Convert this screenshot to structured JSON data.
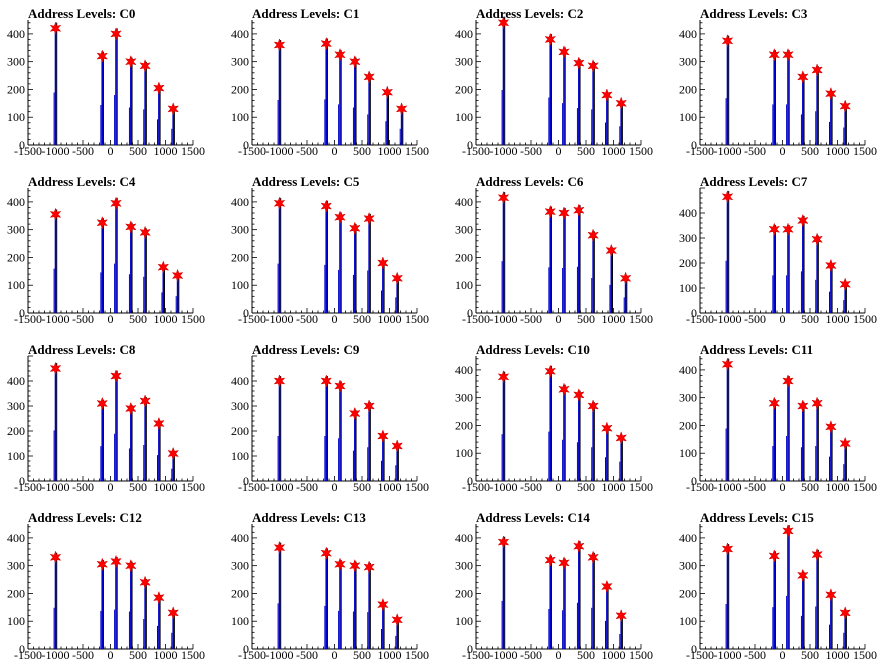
{
  "chart_data": [
    {
      "type": "line",
      "title": "Address Levels: C0",
      "xlim": [
        -1500,
        1500
      ],
      "ylim": [
        0,
        450
      ],
      "xticks": [
        "-1500",
        "-1000",
        "-500",
        "0",
        "500",
        "1000",
        "1500"
      ],
      "yticks": [
        "0",
        "100",
        "200",
        "300",
        "400"
      ],
      "peaks": [
        {
          "x": -1000,
          "y": 420
        },
        {
          "x": -150,
          "y": 320
        },
        {
          "x": 100,
          "y": 400
        },
        {
          "x": 370,
          "y": 300
        },
        {
          "x": 630,
          "y": 285
        },
        {
          "x": 880,
          "y": 205
        },
        {
          "x": 1140,
          "y": 130
        }
      ]
    },
    {
      "type": "line",
      "title": "Address Levels: C1",
      "xlim": [
        -1500,
        1500
      ],
      "ylim": [
        0,
        450
      ],
      "xticks": [
        "-1500",
        "-1000",
        "-500",
        "0",
        "500",
        "1000",
        "1500"
      ],
      "yticks": [
        "0",
        "100",
        "200",
        "300",
        "400"
      ],
      "peaks": [
        {
          "x": -1000,
          "y": 360
        },
        {
          "x": -150,
          "y": 365
        },
        {
          "x": 100,
          "y": 325
        },
        {
          "x": 370,
          "y": 300
        },
        {
          "x": 630,
          "y": 245
        },
        {
          "x": 960,
          "y": 190
        },
        {
          "x": 1220,
          "y": 130
        }
      ]
    },
    {
      "type": "line",
      "title": "Address Levels: C2",
      "xlim": [
        -1500,
        1500
      ],
      "ylim": [
        0,
        450
      ],
      "xticks": [
        "-1500",
        "-1000",
        "-500",
        "0",
        "500",
        "1000",
        "1500"
      ],
      "yticks": [
        "0",
        "100",
        "200",
        "300",
        "400"
      ],
      "peaks": [
        {
          "x": -1000,
          "y": 440
        },
        {
          "x": -150,
          "y": 380
        },
        {
          "x": 100,
          "y": 335
        },
        {
          "x": 370,
          "y": 295
        },
        {
          "x": 630,
          "y": 285
        },
        {
          "x": 880,
          "y": 180
        },
        {
          "x": 1140,
          "y": 150
        }
      ]
    },
    {
      "type": "line",
      "title": "Address Levels: C3",
      "xlim": [
        -1500,
        1500
      ],
      "ylim": [
        0,
        450
      ],
      "xticks": [
        "-1500",
        "-1000",
        "-500",
        "0",
        "500",
        "1000",
        "1500"
      ],
      "yticks": [
        "0",
        "100",
        "200",
        "300",
        "400"
      ],
      "peaks": [
        {
          "x": -1000,
          "y": 375
        },
        {
          "x": -150,
          "y": 325
        },
        {
          "x": 100,
          "y": 325
        },
        {
          "x": 370,
          "y": 245
        },
        {
          "x": 630,
          "y": 270
        },
        {
          "x": 880,
          "y": 185
        },
        {
          "x": 1140,
          "y": 140
        }
      ]
    },
    {
      "type": "line",
      "title": "Address Levels: C4",
      "xlim": [
        -1500,
        1500
      ],
      "ylim": [
        0,
        450
      ],
      "xticks": [
        "-1500",
        "-1000",
        "-500",
        "0",
        "500",
        "1000",
        "1500"
      ],
      "yticks": [
        "0",
        "100",
        "200",
        "300",
        "400"
      ],
      "peaks": [
        {
          "x": -1000,
          "y": 355
        },
        {
          "x": -150,
          "y": 325
        },
        {
          "x": 100,
          "y": 395
        },
        {
          "x": 370,
          "y": 310
        },
        {
          "x": 630,
          "y": 290
        },
        {
          "x": 960,
          "y": 165
        },
        {
          "x": 1220,
          "y": 135
        }
      ]
    },
    {
      "type": "line",
      "title": "Address Levels: C5",
      "xlim": [
        -1500,
        1500
      ],
      "ylim": [
        0,
        450
      ],
      "xticks": [
        "-1500",
        "-1000",
        "-500",
        "0",
        "500",
        "1000",
        "1500"
      ],
      "yticks": [
        "0",
        "100",
        "200",
        "300",
        "400"
      ],
      "peaks": [
        {
          "x": -1000,
          "y": 395
        },
        {
          "x": -150,
          "y": 385
        },
        {
          "x": 100,
          "y": 345
        },
        {
          "x": 370,
          "y": 305
        },
        {
          "x": 630,
          "y": 340
        },
        {
          "x": 880,
          "y": 180
        },
        {
          "x": 1140,
          "y": 125
        }
      ]
    },
    {
      "type": "line",
      "title": "Address Levels: C6",
      "xlim": [
        -1500,
        1500
      ],
      "ylim": [
        0,
        450
      ],
      "xticks": [
        "-1500",
        "-1000",
        "-500",
        "0",
        "500",
        "1000",
        "1500"
      ],
      "yticks": [
        "0",
        "100",
        "200",
        "300",
        "400"
      ],
      "peaks": [
        {
          "x": -1000,
          "y": 415
        },
        {
          "x": -150,
          "y": 365
        },
        {
          "x": 100,
          "y": 360
        },
        {
          "x": 370,
          "y": 370
        },
        {
          "x": 630,
          "y": 280
        },
        {
          "x": 960,
          "y": 225
        },
        {
          "x": 1220,
          "y": 125
        }
      ]
    },
    {
      "type": "line",
      "title": "Address Levels: C7",
      "xlim": [
        -1500,
        1500
      ],
      "ylim": [
        0,
        500
      ],
      "xticks": [
        "-1500",
        "-1000",
        "-500",
        "0",
        "500",
        "1000",
        "1500"
      ],
      "yticks": [
        "0",
        "100",
        "200",
        "300",
        "400"
      ],
      "peaks": [
        {
          "x": -1000,
          "y": 465
        },
        {
          "x": -150,
          "y": 335
        },
        {
          "x": 100,
          "y": 335
        },
        {
          "x": 370,
          "y": 370
        },
        {
          "x": 630,
          "y": 295
        },
        {
          "x": 880,
          "y": 190
        },
        {
          "x": 1140,
          "y": 115
        }
      ]
    },
    {
      "type": "line",
      "title": "Address Levels: C8",
      "xlim": [
        -1500,
        1500
      ],
      "ylim": [
        0,
        500
      ],
      "xticks": [
        "-1500",
        "-1000",
        "-500",
        "0",
        "500",
        "1000",
        "1500"
      ],
      "yticks": [
        "0",
        "100",
        "200",
        "300",
        "400"
      ],
      "peaks": [
        {
          "x": -1000,
          "y": 450
        },
        {
          "x": -150,
          "y": 310
        },
        {
          "x": 100,
          "y": 420
        },
        {
          "x": 370,
          "y": 290
        },
        {
          "x": 630,
          "y": 320
        },
        {
          "x": 880,
          "y": 230
        },
        {
          "x": 1140,
          "y": 110
        }
      ]
    },
    {
      "type": "line",
      "title": "Address Levels: C9",
      "xlim": [
        -1500,
        1500
      ],
      "ylim": [
        0,
        500
      ],
      "xticks": [
        "-1500",
        "-1000",
        "-500",
        "0",
        "500",
        "1000",
        "1500"
      ],
      "yticks": [
        "0",
        "100",
        "200",
        "300",
        "400"
      ],
      "peaks": [
        {
          "x": -1000,
          "y": 400
        },
        {
          "x": -150,
          "y": 400
        },
        {
          "x": 100,
          "y": 380
        },
        {
          "x": 370,
          "y": 270
        },
        {
          "x": 630,
          "y": 300
        },
        {
          "x": 880,
          "y": 180
        },
        {
          "x": 1140,
          "y": 140
        }
      ]
    },
    {
      "type": "line",
      "title": "Address Levels: C10",
      "xlim": [
        -1500,
        1500
      ],
      "ylim": [
        0,
        450
      ],
      "xticks": [
        "-1500",
        "-1000",
        "-500",
        "0",
        "500",
        "1000",
        "1500"
      ],
      "yticks": [
        "0",
        "100",
        "200",
        "300",
        "400"
      ],
      "peaks": [
        {
          "x": -1000,
          "y": 375
        },
        {
          "x": -150,
          "y": 395
        },
        {
          "x": 100,
          "y": 330
        },
        {
          "x": 370,
          "y": 310
        },
        {
          "x": 630,
          "y": 270
        },
        {
          "x": 880,
          "y": 190
        },
        {
          "x": 1140,
          "y": 155
        }
      ]
    },
    {
      "type": "line",
      "title": "Address Levels: C11",
      "xlim": [
        -1500,
        1500
      ],
      "ylim": [
        0,
        450
      ],
      "xticks": [
        "-1500",
        "-1000",
        "-500",
        "0",
        "500",
        "1000",
        "1500"
      ],
      "yticks": [
        "0",
        "100",
        "200",
        "300",
        "400"
      ],
      "peaks": [
        {
          "x": -1000,
          "y": 420
        },
        {
          "x": -150,
          "y": 280
        },
        {
          "x": 100,
          "y": 360
        },
        {
          "x": 370,
          "y": 270
        },
        {
          "x": 630,
          "y": 280
        },
        {
          "x": 880,
          "y": 195
        },
        {
          "x": 1140,
          "y": 135
        }
      ]
    },
    {
      "type": "line",
      "title": "Address Levels: C12",
      "xlim": [
        -1500,
        1500
      ],
      "ylim": [
        0,
        450
      ],
      "xticks": [
        "-1500",
        "-1000",
        "-500",
        "0",
        "500",
        "1000",
        "1500"
      ],
      "yticks": [
        "0",
        "100",
        "200",
        "300",
        "400"
      ],
      "peaks": [
        {
          "x": -1000,
          "y": 330
        },
        {
          "x": -150,
          "y": 305
        },
        {
          "x": 100,
          "y": 315
        },
        {
          "x": 370,
          "y": 300
        },
        {
          "x": 630,
          "y": 240
        },
        {
          "x": 880,
          "y": 185
        },
        {
          "x": 1140,
          "y": 130
        }
      ]
    },
    {
      "type": "line",
      "title": "Address Levels: C13",
      "xlim": [
        -1500,
        1500
      ],
      "ylim": [
        0,
        450
      ],
      "xticks": [
        "-1500",
        "-1000",
        "-500",
        "0",
        "500",
        "1000",
        "1500"
      ],
      "yticks": [
        "0",
        "100",
        "200",
        "300",
        "400"
      ],
      "peaks": [
        {
          "x": -1000,
          "y": 365
        },
        {
          "x": -150,
          "y": 345
        },
        {
          "x": 100,
          "y": 305
        },
        {
          "x": 370,
          "y": 300
        },
        {
          "x": 630,
          "y": 295
        },
        {
          "x": 880,
          "y": 160
        },
        {
          "x": 1140,
          "y": 105
        }
      ]
    },
    {
      "type": "line",
      "title": "Address Levels: C14",
      "xlim": [
        -1500,
        1500
      ],
      "ylim": [
        0,
        450
      ],
      "xticks": [
        "-1500",
        "-1000",
        "-500",
        "0",
        "500",
        "1000",
        "1500"
      ],
      "yticks": [
        "0",
        "100",
        "200",
        "300",
        "400"
      ],
      "peaks": [
        {
          "x": -1000,
          "y": 385
        },
        {
          "x": -150,
          "y": 320
        },
        {
          "x": 100,
          "y": 310
        },
        {
          "x": 370,
          "y": 370
        },
        {
          "x": 630,
          "y": 330
        },
        {
          "x": 880,
          "y": 225
        },
        {
          "x": 1140,
          "y": 120
        }
      ]
    },
    {
      "type": "line",
      "title": "Address Levels: C15",
      "xlim": [
        -1500,
        1500
      ],
      "ylim": [
        0,
        450
      ],
      "xticks": [
        "-1500",
        "-1000",
        "-500",
        "0",
        "500",
        "1000",
        "1500"
      ],
      "yticks": [
        "0",
        "100",
        "200",
        "300",
        "400"
      ],
      "peaks": [
        {
          "x": -1000,
          "y": 360
        },
        {
          "x": -150,
          "y": 335
        },
        {
          "x": 100,
          "y": 425
        },
        {
          "x": 370,
          "y": 265
        },
        {
          "x": 630,
          "y": 340
        },
        {
          "x": 880,
          "y": 195
        },
        {
          "x": 1140,
          "y": 130
        }
      ]
    }
  ],
  "colors": {
    "histogram": "#0000cc",
    "spike": "#000000",
    "marker": "#ff0000",
    "marker_edge": "#cc0000",
    "axis": "#000000",
    "background": "#ffffff"
  }
}
